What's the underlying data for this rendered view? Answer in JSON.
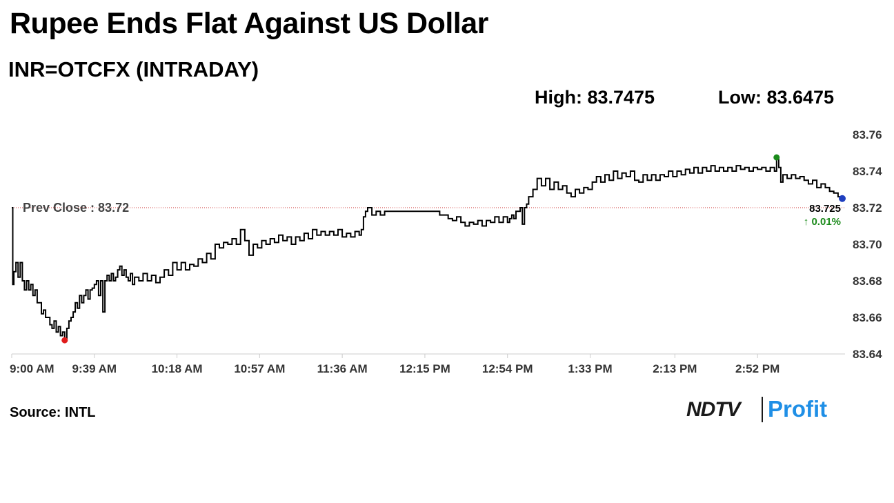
{
  "header": {
    "title": "Rupee Ends Flat Against US Dollar",
    "subtitle": "INR=OTCFX (INTRADAY)",
    "high_label": "High: 83.7475",
    "low_label": "Low: 83.6475"
  },
  "footer": {
    "source": "Source: INTL",
    "logo_left": "NDTV",
    "logo_right": "Profit"
  },
  "colors": {
    "line": "#000000",
    "prev_close_line": "#cc3333",
    "high_marker": "#1a8a1a",
    "low_marker": "#e01b1b",
    "last_marker": "#1f3fbf",
    "change_positive": "#1a8a1a",
    "axis_text": "#333333",
    "logo_accent": "#1f8fe6"
  },
  "chart_data": {
    "type": "line",
    "x_ticks": [
      "9:00 AM",
      "9:39 AM",
      "10:18 AM",
      "10:57 AM",
      "11:36 AM",
      "12:15 PM",
      "12:54 PM",
      "1:33 PM",
      "2:13 PM",
      "2:52 PM"
    ],
    "x_tick_minutes": [
      0,
      39,
      78,
      117,
      156,
      195,
      234,
      273,
      313,
      352
    ],
    "x_range_minutes": [
      0,
      392
    ],
    "y_ticks": [
      "83.76",
      "83.74",
      "83.72",
      "83.70",
      "83.68",
      "83.66",
      "83.64"
    ],
    "ylim": [
      83.64,
      83.76
    ],
    "y_axis_position": "right",
    "grid": false,
    "prev_close": {
      "label": "Prev Close : 83.72",
      "value": 83.72
    },
    "last": {
      "value_label": "83.725",
      "change_label": "↑ 0.01%",
      "value": 83.725
    },
    "high": {
      "minute": 361,
      "value": 83.7475
    },
    "low": {
      "minute": 25,
      "value": 83.6475
    },
    "series": [
      {
        "points": [
          [
            0,
            83.72
          ],
          [
            0.5,
            83.678
          ],
          [
            1,
            83.685
          ],
          [
            2,
            83.69
          ],
          [
            3,
            83.682
          ],
          [
            4,
            83.69
          ],
          [
            5,
            83.68
          ],
          [
            6,
            83.675
          ],
          [
            7,
            83.68
          ],
          [
            8,
            83.675
          ],
          [
            9,
            83.678
          ],
          [
            10,
            83.672
          ],
          [
            11,
            83.675
          ],
          [
            12,
            83.668
          ],
          [
            13,
            83.668
          ],
          [
            14,
            83.662
          ],
          [
            15,
            83.664
          ],
          [
            16,
            83.66
          ],
          [
            17,
            83.66
          ],
          [
            18,
            83.656
          ],
          [
            19,
            83.654
          ],
          [
            20,
            83.658
          ],
          [
            21,
            83.652
          ],
          [
            22,
            83.655
          ],
          [
            23,
            83.65
          ],
          [
            24,
            83.652
          ],
          [
            25,
            83.6475
          ],
          [
            26,
            83.654
          ],
          [
            27,
            83.658
          ],
          [
            28,
            83.66
          ],
          [
            29,
            83.663
          ],
          [
            30,
            83.668
          ],
          [
            31,
            83.665
          ],
          [
            32,
            83.672
          ],
          [
            33,
            83.668
          ],
          [
            34,
            83.672
          ],
          [
            35,
            83.675
          ],
          [
            36,
            83.67
          ],
          [
            37,
            83.675
          ],
          [
            38,
            83.676
          ],
          [
            39,
            83.678
          ],
          [
            40,
            83.68
          ],
          [
            41,
            83.672
          ],
          [
            42,
            83.68
          ],
          [
            43,
            83.663
          ],
          [
            44,
            83.68
          ],
          [
            45,
            83.683
          ],
          [
            46,
            83.68
          ],
          [
            47,
            83.684
          ],
          [
            48,
            83.68
          ],
          [
            49,
            83.682
          ],
          [
            50,
            83.686
          ],
          [
            51,
            83.688
          ],
          [
            52,
            83.683
          ],
          [
            53,
            83.686
          ],
          [
            54,
            83.682
          ],
          [
            55,
            83.68
          ],
          [
            56,
            83.684
          ],
          [
            57,
            83.678
          ],
          [
            58,
            83.682
          ],
          [
            60,
            83.68
          ],
          [
            62,
            83.684
          ],
          [
            64,
            83.68
          ],
          [
            66,
            83.683
          ],
          [
            68,
            83.679
          ],
          [
            70,
            83.682
          ],
          [
            72,
            83.686
          ],
          [
            74,
            83.683
          ],
          [
            76,
            83.69
          ],
          [
            78,
            83.686
          ],
          [
            80,
            83.69
          ],
          [
            82,
            83.686
          ],
          [
            84,
            83.689
          ],
          [
            86,
            83.688
          ],
          [
            88,
            83.692
          ],
          [
            90,
            83.69
          ],
          [
            92,
            83.695
          ],
          [
            94,
            83.692
          ],
          [
            96,
            83.7
          ],
          [
            98,
            83.698
          ],
          [
            100,
            83.701
          ],
          [
            102,
            83.7
          ],
          [
            104,
            83.703
          ],
          [
            106,
            83.7
          ],
          [
            108,
            83.708
          ],
          [
            110,
            83.702
          ],
          [
            112,
            83.694
          ],
          [
            114,
            83.7
          ],
          [
            116,
            83.698
          ],
          [
            118,
            83.702
          ],
          [
            120,
            83.7
          ],
          [
            122,
            83.703
          ],
          [
            124,
            83.701
          ],
          [
            126,
            83.705
          ],
          [
            128,
            83.702
          ],
          [
            130,
            83.704
          ],
          [
            132,
            83.7
          ],
          [
            134,
            83.704
          ],
          [
            136,
            83.702
          ],
          [
            138,
            83.706
          ],
          [
            140,
            83.703
          ],
          [
            142,
            83.708
          ],
          [
            144,
            83.705
          ],
          [
            146,
            83.707
          ],
          [
            148,
            83.705
          ],
          [
            150,
            83.707
          ],
          [
            152,
            83.705
          ],
          [
            154,
            83.708
          ],
          [
            156,
            83.704
          ],
          [
            158,
            83.706
          ],
          [
            160,
            83.704
          ],
          [
            162,
            83.707
          ],
          [
            164,
            83.705
          ],
          [
            165,
            83.708
          ],
          [
            166,
            83.715
          ],
          [
            167,
            83.718
          ],
          [
            168,
            83.72
          ],
          [
            170,
            83.716
          ],
          [
            172,
            83.718
          ],
          [
            174,
            83.716
          ],
          [
            176,
            83.718
          ],
          [
            178,
            83.718
          ],
          [
            180,
            83.718
          ],
          [
            182,
            83.718
          ],
          [
            184,
            83.718
          ],
          [
            186,
            83.718
          ],
          [
            188,
            83.718
          ],
          [
            190,
            83.718
          ],
          [
            192,
            83.718
          ],
          [
            194,
            83.718
          ],
          [
            196,
            83.718
          ],
          [
            198,
            83.718
          ],
          [
            200,
            83.718
          ],
          [
            202,
            83.716
          ],
          [
            204,
            83.716
          ],
          [
            206,
            83.714
          ],
          [
            208,
            83.713
          ],
          [
            210,
            83.715
          ],
          [
            212,
            83.712
          ],
          [
            214,
            83.71
          ],
          [
            216,
            83.712
          ],
          [
            218,
            83.711
          ],
          [
            220,
            83.713
          ],
          [
            222,
            83.71
          ],
          [
            224,
            83.713
          ],
          [
            226,
            83.712
          ],
          [
            228,
            83.715
          ],
          [
            230,
            83.712
          ],
          [
            232,
            83.715
          ],
          [
            234,
            83.712
          ],
          [
            235,
            83.714
          ],
          [
            236,
            83.716
          ],
          [
            237,
            83.714
          ],
          [
            238,
            83.718
          ],
          [
            240,
            83.72
          ],
          [
            241,
            83.711
          ],
          [
            242,
            83.72
          ],
          [
            243,
            83.722
          ],
          [
            244,
            83.726
          ],
          [
            246,
            83.73
          ],
          [
            248,
            83.736
          ],
          [
            250,
            83.732
          ],
          [
            252,
            83.736
          ],
          [
            254,
            83.73
          ],
          [
            256,
            83.734
          ],
          [
            258,
            83.73
          ],
          [
            260,
            83.732
          ],
          [
            262,
            83.728
          ],
          [
            264,
            83.726
          ],
          [
            266,
            83.73
          ],
          [
            268,
            83.728
          ],
          [
            270,
            83.731
          ],
          [
            272,
            83.73
          ],
          [
            274,
            83.734
          ],
          [
            276,
            83.737
          ],
          [
            278,
            83.734
          ],
          [
            280,
            83.738
          ],
          [
            282,
            83.735
          ],
          [
            284,
            83.74
          ],
          [
            286,
            83.736
          ],
          [
            288,
            83.739
          ],
          [
            290,
            83.737
          ],
          [
            292,
            83.74
          ],
          [
            294,
            83.735
          ],
          [
            296,
            83.734
          ],
          [
            298,
            83.738
          ],
          [
            300,
            83.735
          ],
          [
            302,
            83.738
          ],
          [
            304,
            83.735
          ],
          [
            306,
            83.738
          ],
          [
            308,
            83.737
          ],
          [
            310,
            83.74
          ],
          [
            312,
            83.737
          ],
          [
            314,
            83.74
          ],
          [
            316,
            83.738
          ],
          [
            318,
            83.741
          ],
          [
            320,
            83.739
          ],
          [
            322,
            83.742
          ],
          [
            324,
            83.739
          ],
          [
            326,
            83.742
          ],
          [
            328,
            83.74
          ],
          [
            330,
            83.743
          ],
          [
            332,
            83.74
          ],
          [
            334,
            83.742
          ],
          [
            336,
            83.74
          ],
          [
            338,
            83.742
          ],
          [
            340,
            83.74
          ],
          [
            342,
            83.743
          ],
          [
            344,
            83.741
          ],
          [
            346,
            83.742
          ],
          [
            348,
            83.74
          ],
          [
            350,
            83.742
          ],
          [
            352,
            83.741
          ],
          [
            354,
            83.742
          ],
          [
            356,
            83.74
          ],
          [
            358,
            83.742
          ],
          [
            360,
            83.74
          ],
          [
            361,
            83.7475
          ],
          [
            362,
            83.742
          ],
          [
            363,
            83.734
          ],
          [
            364,
            83.738
          ],
          [
            366,
            83.736
          ],
          [
            368,
            83.738
          ],
          [
            370,
            83.736
          ],
          [
            372,
            83.737
          ],
          [
            374,
            83.735
          ],
          [
            376,
            83.733
          ],
          [
            378,
            83.735
          ],
          [
            380,
            83.731
          ],
          [
            382,
            83.733
          ],
          [
            384,
            83.731
          ],
          [
            386,
            83.729
          ],
          [
            388,
            83.728
          ],
          [
            390,
            83.726
          ],
          [
            392,
            83.725
          ]
        ]
      }
    ]
  }
}
